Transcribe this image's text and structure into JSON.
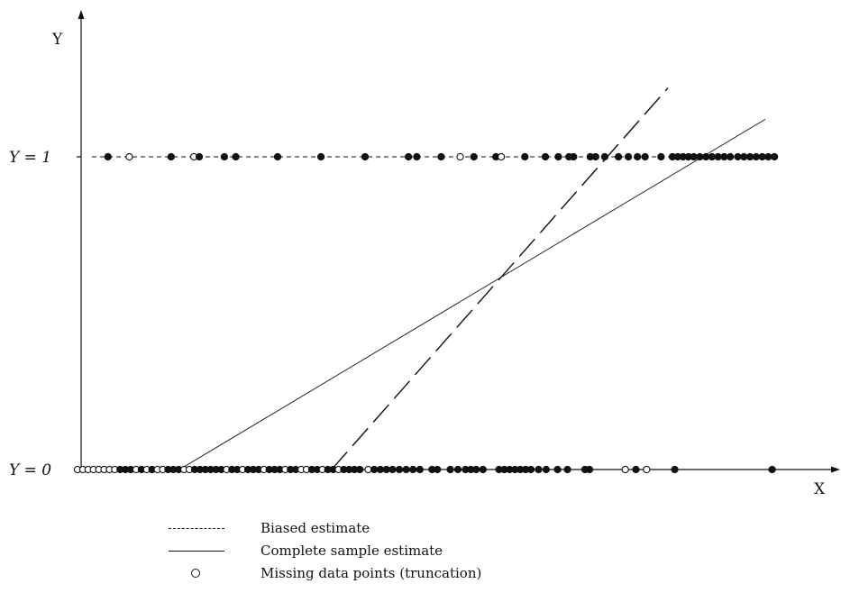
{
  "chart_data": {
    "type": "scatter",
    "title": "",
    "xlabel": "X",
    "ylabel": "Y",
    "xlim": [
      0,
      100
    ],
    "ylim": [
      0,
      1.35
    ],
    "y_tick_labels": [
      {
        "value": 0,
        "label": "Y = 0"
      },
      {
        "value": 1,
        "label": "Y = 1"
      }
    ],
    "grid": false,
    "legend_position": "bottom",
    "legend": [
      {
        "key": "dashed-line",
        "label": "Biased estimate"
      },
      {
        "key": "solid-line",
        "label": "Complete sample estimate"
      },
      {
        "key": "open-circle",
        "label": "Missing data points (truncation)"
      }
    ],
    "series": [
      {
        "name": "Y = 1",
        "points": [
          {
            "x": 4.0,
            "y": 1,
            "missing": false
          },
          {
            "x": 6.8,
            "y": 1,
            "missing": true
          },
          {
            "x": 12.3,
            "y": 1,
            "missing": false
          },
          {
            "x": 15.3,
            "y": 1,
            "missing": true
          },
          {
            "x": 16.0,
            "y": 1,
            "missing": false
          },
          {
            "x": 19.3,
            "y": 1,
            "missing": false
          },
          {
            "x": 20.8,
            "y": 1,
            "missing": false
          },
          {
            "x": 26.3,
            "y": 1,
            "missing": false
          },
          {
            "x": 32.0,
            "y": 1,
            "missing": false
          },
          {
            "x": 37.8,
            "y": 1,
            "missing": false
          },
          {
            "x": 43.5,
            "y": 1,
            "missing": false
          },
          {
            "x": 44.6,
            "y": 1,
            "missing": false
          },
          {
            "x": 47.8,
            "y": 1,
            "missing": false
          },
          {
            "x": 50.3,
            "y": 1,
            "missing": true
          },
          {
            "x": 52.1,
            "y": 1,
            "missing": false
          },
          {
            "x": 55.0,
            "y": 1,
            "missing": false
          },
          {
            "x": 55.7,
            "y": 1,
            "missing": true
          },
          {
            "x": 58.8,
            "y": 1,
            "missing": false
          },
          {
            "x": 61.5,
            "y": 1,
            "missing": false
          },
          {
            "x": 63.2,
            "y": 1,
            "missing": false
          },
          {
            "x": 64.6,
            "y": 1,
            "missing": false
          },
          {
            "x": 65.2,
            "y": 1,
            "missing": false
          },
          {
            "x": 67.4,
            "y": 1,
            "missing": false
          },
          {
            "x": 68.1,
            "y": 1,
            "missing": false
          },
          {
            "x": 69.3,
            "y": 1,
            "missing": false
          },
          {
            "x": 71.1,
            "y": 1,
            "missing": false
          },
          {
            "x": 72.4,
            "y": 1,
            "missing": false
          },
          {
            "x": 73.6,
            "y": 1,
            "missing": false
          },
          {
            "x": 74.6,
            "y": 1,
            "missing": false
          },
          {
            "x": 76.7,
            "y": 1,
            "missing": false
          },
          {
            "x": 78.2,
            "y": 1,
            "missing": false
          },
          {
            "x": 78.9,
            "y": 1,
            "missing": false
          },
          {
            "x": 79.6,
            "y": 1,
            "missing": false
          },
          {
            "x": 80.3,
            "y": 1,
            "missing": false
          },
          {
            "x": 81.0,
            "y": 1,
            "missing": false
          },
          {
            "x": 81.8,
            "y": 1,
            "missing": false
          },
          {
            "x": 82.6,
            "y": 1,
            "missing": false
          },
          {
            "x": 83.4,
            "y": 1,
            "missing": false
          },
          {
            "x": 84.2,
            "y": 1,
            "missing": false
          },
          {
            "x": 85.0,
            "y": 1,
            "missing": false
          },
          {
            "x": 85.8,
            "y": 1,
            "missing": false
          },
          {
            "x": 86.8,
            "y": 1,
            "missing": false
          },
          {
            "x": 87.6,
            "y": 1,
            "missing": false
          },
          {
            "x": 88.4,
            "y": 1,
            "missing": false
          },
          {
            "x": 89.2,
            "y": 1,
            "missing": false
          },
          {
            "x": 90.0,
            "y": 1,
            "missing": false
          },
          {
            "x": 90.8,
            "y": 1,
            "missing": false
          },
          {
            "x": 91.6,
            "y": 1,
            "missing": false
          }
        ]
      },
      {
        "name": "Y = 0",
        "points": [
          {
            "x": 0.0,
            "y": 0,
            "missing": true
          },
          {
            "x": 0.7,
            "y": 0,
            "missing": true
          },
          {
            "x": 1.4,
            "y": 0,
            "missing": true
          },
          {
            "x": 2.1,
            "y": 0,
            "missing": true
          },
          {
            "x": 2.8,
            "y": 0,
            "missing": true
          },
          {
            "x": 3.5,
            "y": 0,
            "missing": true
          },
          {
            "x": 4.2,
            "y": 0,
            "missing": true
          },
          {
            "x": 4.9,
            "y": 0,
            "missing": true
          },
          {
            "x": 5.6,
            "y": 0,
            "missing": false
          },
          {
            "x": 6.3,
            "y": 0,
            "missing": false
          },
          {
            "x": 7.0,
            "y": 0,
            "missing": false
          },
          {
            "x": 7.7,
            "y": 0,
            "missing": true
          },
          {
            "x": 8.4,
            "y": 0,
            "missing": false
          },
          {
            "x": 9.1,
            "y": 0,
            "missing": true
          },
          {
            "x": 9.8,
            "y": 0,
            "missing": false
          },
          {
            "x": 10.5,
            "y": 0,
            "missing": true
          },
          {
            "x": 11.2,
            "y": 0,
            "missing": true
          },
          {
            "x": 11.9,
            "y": 0,
            "missing": false
          },
          {
            "x": 12.6,
            "y": 0,
            "missing": false
          },
          {
            "x": 13.3,
            "y": 0,
            "missing": false
          },
          {
            "x": 14.0,
            "y": 0,
            "missing": true
          },
          {
            "x": 14.7,
            "y": 0,
            "missing": true
          },
          {
            "x": 15.4,
            "y": 0,
            "missing": false
          },
          {
            "x": 16.1,
            "y": 0,
            "missing": false
          },
          {
            "x": 16.8,
            "y": 0,
            "missing": false
          },
          {
            "x": 17.5,
            "y": 0,
            "missing": false
          },
          {
            "x": 18.2,
            "y": 0,
            "missing": false
          },
          {
            "x": 18.9,
            "y": 0,
            "missing": false
          },
          {
            "x": 19.6,
            "y": 0,
            "missing": true
          },
          {
            "x": 20.3,
            "y": 0,
            "missing": false
          },
          {
            "x": 21.0,
            "y": 0,
            "missing": false
          },
          {
            "x": 21.7,
            "y": 0,
            "missing": true
          },
          {
            "x": 22.4,
            "y": 0,
            "missing": false
          },
          {
            "x": 23.1,
            "y": 0,
            "missing": false
          },
          {
            "x": 23.8,
            "y": 0,
            "missing": false
          },
          {
            "x": 24.5,
            "y": 0,
            "missing": true
          },
          {
            "x": 25.2,
            "y": 0,
            "missing": false
          },
          {
            "x": 25.9,
            "y": 0,
            "missing": false
          },
          {
            "x": 26.6,
            "y": 0,
            "missing": false
          },
          {
            "x": 27.3,
            "y": 0,
            "missing": true
          },
          {
            "x": 28.0,
            "y": 0,
            "missing": false
          },
          {
            "x": 28.7,
            "y": 0,
            "missing": false
          },
          {
            "x": 29.4,
            "y": 0,
            "missing": true
          },
          {
            "x": 30.1,
            "y": 0,
            "missing": true
          },
          {
            "x": 30.8,
            "y": 0,
            "missing": false
          },
          {
            "x": 31.5,
            "y": 0,
            "missing": false
          },
          {
            "x": 32.2,
            "y": 0,
            "missing": true
          },
          {
            "x": 32.9,
            "y": 0,
            "missing": false
          },
          {
            "x": 33.6,
            "y": 0,
            "missing": false
          },
          {
            "x": 34.3,
            "y": 0,
            "missing": true
          },
          {
            "x": 35.0,
            "y": 0,
            "missing": false
          },
          {
            "x": 35.7,
            "y": 0,
            "missing": false
          },
          {
            "x": 36.4,
            "y": 0,
            "missing": false
          },
          {
            "x": 37.1,
            "y": 0,
            "missing": false
          },
          {
            "x": 38.2,
            "y": 0,
            "missing": true
          },
          {
            "x": 39.0,
            "y": 0,
            "missing": false
          },
          {
            "x": 39.8,
            "y": 0,
            "missing": false
          },
          {
            "x": 40.6,
            "y": 0,
            "missing": false
          },
          {
            "x": 41.4,
            "y": 0,
            "missing": false
          },
          {
            "x": 42.3,
            "y": 0,
            "missing": false
          },
          {
            "x": 43.2,
            "y": 0,
            "missing": false
          },
          {
            "x": 44.1,
            "y": 0,
            "missing": false
          },
          {
            "x": 45.0,
            "y": 0,
            "missing": false
          },
          {
            "x": 46.6,
            "y": 0,
            "missing": false
          },
          {
            "x": 47.3,
            "y": 0,
            "missing": false
          },
          {
            "x": 49.0,
            "y": 0,
            "missing": false
          },
          {
            "x": 50.0,
            "y": 0,
            "missing": false
          },
          {
            "x": 51.0,
            "y": 0,
            "missing": false
          },
          {
            "x": 51.7,
            "y": 0,
            "missing": false
          },
          {
            "x": 52.4,
            "y": 0,
            "missing": false
          },
          {
            "x": 53.3,
            "y": 0,
            "missing": false
          },
          {
            "x": 55.4,
            "y": 0,
            "missing": false
          },
          {
            "x": 56.1,
            "y": 0,
            "missing": false
          },
          {
            "x": 56.8,
            "y": 0,
            "missing": false
          },
          {
            "x": 57.5,
            "y": 0,
            "missing": false
          },
          {
            "x": 58.2,
            "y": 0,
            "missing": false
          },
          {
            "x": 58.9,
            "y": 0,
            "missing": false
          },
          {
            "x": 59.6,
            "y": 0,
            "missing": false
          },
          {
            "x": 60.6,
            "y": 0,
            "missing": false
          },
          {
            "x": 61.6,
            "y": 0,
            "missing": false
          },
          {
            "x": 63.1,
            "y": 0,
            "missing": false
          },
          {
            "x": 64.4,
            "y": 0,
            "missing": false
          },
          {
            "x": 66.7,
            "y": 0,
            "missing": false
          },
          {
            "x": 67.3,
            "y": 0,
            "missing": false
          },
          {
            "x": 72.0,
            "y": 0,
            "missing": true
          },
          {
            "x": 73.4,
            "y": 0,
            "missing": false
          },
          {
            "x": 74.8,
            "y": 0,
            "missing": true
          },
          {
            "x": 78.5,
            "y": 0,
            "missing": false
          },
          {
            "x": 91.3,
            "y": 0,
            "missing": false
          }
        ]
      }
    ],
    "lines": [
      {
        "name": "Biased estimate",
        "style": "long-dash",
        "x": [
          33.4,
          77.6
        ],
        "y": [
          0,
          1.22
        ]
      },
      {
        "name": "Complete sample estimate",
        "style": "solid-thin",
        "x": [
          13.4,
          90.4
        ],
        "y": [
          0,
          1.12
        ]
      }
    ],
    "level_lines": [
      {
        "y": 1,
        "style": "dashed",
        "x": [
          1.9,
          92.2
        ]
      },
      {
        "y": 0,
        "style": "solid",
        "x": [
          0,
          100
        ]
      }
    ]
  }
}
